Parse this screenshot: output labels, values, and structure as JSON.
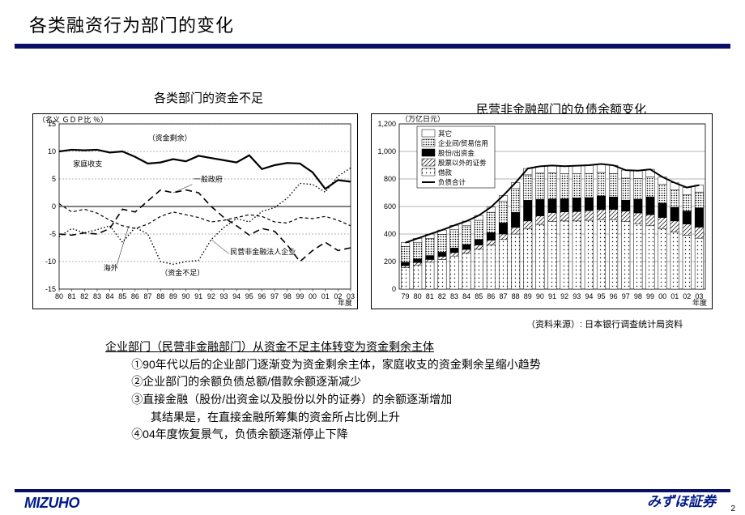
{
  "title": "各类融资行为部门的变化",
  "charts": {
    "left": {
      "title": "各类部门的资金不足",
      "type": "line",
      "y_unit": "（名义 ＧＤＰ比 ％）",
      "ylim": [
        -15,
        15
      ],
      "ytick_step": 5,
      "xlim": [
        80,
        103
      ],
      "x_labels": [
        "80",
        "81",
        "82",
        "83",
        "84",
        "85",
        "86",
        "87",
        "88",
        "89",
        "90",
        "91",
        "92",
        "93",
        "94",
        "95",
        "96",
        "97",
        "98",
        "99",
        "00",
        "01",
        "02",
        "03"
      ],
      "x_axis_label": "年度",
      "annotations": {
        "surplus": "（资金剩余）",
        "deficit": "（资金不足）",
        "household": "家庭收支",
        "government": "一般政府",
        "overseas": "海外",
        "private_nonfin": "民营非金融法人企业"
      },
      "line_color": "#000000",
      "series": {
        "household": {
          "style": "solid",
          "width": 2.2,
          "values": [
            10,
            10.3,
            10.2,
            10.3,
            9.8,
            10,
            9,
            7.8,
            8,
            8.6,
            8.2,
            9.2,
            8.8,
            8.4,
            8,
            9.3,
            6.8,
            7.5,
            7.9,
            7.8,
            6.2,
            3.2,
            4.8,
            4.5
          ]
        },
        "government": {
          "style": "long-dash",
          "width": 1.6,
          "values": [
            -5,
            -5.2,
            -4.8,
            -5,
            -4,
            -0.5,
            -1,
            1,
            3,
            2.5,
            3,
            2.5,
            0,
            -2,
            -3.5,
            -5.2,
            -4,
            -4.5,
            -7,
            -10,
            -8,
            -6.5,
            -8,
            -7.5
          ]
        },
        "overseas": {
          "style": "short-dash",
          "width": 1.2,
          "values": [
            0.5,
            -1,
            -0.5,
            -1.2,
            -2.5,
            -3.5,
            -4,
            -3.2,
            -1.8,
            -1,
            -1.5,
            -2,
            -2.8,
            -2.5,
            -2,
            -1.5,
            -1.8,
            -2.8,
            -3.0,
            -2.0,
            -2.2,
            -1.8,
            -2.5,
            -3.5
          ]
        },
        "corporate": {
          "style": "dotted",
          "width": 1.4,
          "values": [
            -5.5,
            -4,
            -4.8,
            -4.2,
            -3.5,
            -6.5,
            -3.8,
            -5,
            -10,
            -10.5,
            -10,
            -9.8,
            -6,
            -3.8,
            -2.2,
            -2.8,
            -0.9,
            -0.2,
            1.5,
            4.2,
            4,
            2.6,
            5.5,
            7
          ]
        }
      }
    },
    "right": {
      "title": "民营非金融部门的负债余额变化",
      "type": "stacked-bar+line",
      "y_unit": "（万亿日元）",
      "ylim": [
        0,
        1200
      ],
      "ytick_step": 200,
      "x_labels": [
        "79",
        "80",
        "81",
        "82",
        "83",
        "84",
        "85",
        "86",
        "87",
        "88",
        "89",
        "90",
        "91",
        "92",
        "93",
        "94",
        "95",
        "96",
        "97",
        "98",
        "99",
        "00",
        "01",
        "02",
        "03"
      ],
      "x_axis_label": "年度",
      "legend": {
        "other": "其它",
        "trade": "企业间/贸易信用",
        "equity": "股份/出资金",
        "nonshare": "股票以外的证劵",
        "loans": "借款",
        "total": "负债合计"
      },
      "colors": {
        "other": {
          "fill": "#ffffff",
          "hatch": ""
        },
        "trade": {
          "fill": "#ffffff",
          "hatch": "dots-dense"
        },
        "equity": {
          "fill": "#000000",
          "hatch": ""
        },
        "nonshare": {
          "fill": "#ffffff",
          "hatch": "diag"
        },
        "loans": {
          "fill": "#ffffff",
          "hatch": "dots-sparse"
        },
        "total_line": "#000000"
      },
      "stack_order": [
        "loans",
        "nonshare",
        "equity",
        "trade",
        "other"
      ],
      "bars": [
        {
          "loans": 155,
          "nonshare": 15,
          "equity": 25,
          "trade": 115,
          "other": 27
        },
        {
          "loans": 175,
          "nonshare": 18,
          "equity": 27,
          "trade": 120,
          "other": 28
        },
        {
          "loans": 195,
          "nonshare": 20,
          "equity": 29,
          "trade": 125,
          "other": 30
        },
        {
          "loans": 215,
          "nonshare": 22,
          "equity": 31,
          "trade": 130,
          "other": 31
        },
        {
          "loans": 240,
          "nonshare": 25,
          "equity": 33,
          "trade": 133,
          "other": 32
        },
        {
          "loans": 260,
          "nonshare": 28,
          "equity": 36,
          "trade": 136,
          "other": 34
        },
        {
          "loans": 290,
          "nonshare": 30,
          "equity": 40,
          "trade": 140,
          "other": 35
        },
        {
          "loans": 320,
          "nonshare": 35,
          "equity": 55,
          "trade": 148,
          "other": 38
        },
        {
          "loans": 360,
          "nonshare": 40,
          "equity": 80,
          "trade": 160,
          "other": 40
        },
        {
          "loans": 400,
          "nonshare": 48,
          "equity": 110,
          "trade": 172,
          "other": 43
        },
        {
          "loans": 440,
          "nonshare": 55,
          "equity": 150,
          "trade": 185,
          "other": 46
        },
        {
          "loans": 470,
          "nonshare": 62,
          "equity": 120,
          "trade": 190,
          "other": 50
        },
        {
          "loans": 490,
          "nonshare": 65,
          "equity": 100,
          "trade": 190,
          "other": 53
        },
        {
          "loans": 495,
          "nonshare": 66,
          "equity": 95,
          "trade": 182,
          "other": 55
        },
        {
          "loans": 495,
          "nonshare": 68,
          "equity": 100,
          "trade": 175,
          "other": 58
        },
        {
          "loans": 500,
          "nonshare": 70,
          "equity": 95,
          "trade": 175,
          "other": 60
        },
        {
          "loans": 505,
          "nonshare": 72,
          "equity": 100,
          "trade": 170,
          "other": 62
        },
        {
          "loans": 505,
          "nonshare": 74,
          "equity": 90,
          "trade": 170,
          "other": 60
        },
        {
          "loans": 490,
          "nonshare": 76,
          "equity": 80,
          "trade": 160,
          "other": 58
        },
        {
          "loans": 475,
          "nonshare": 78,
          "equity": 100,
          "trade": 150,
          "other": 57
        },
        {
          "loans": 460,
          "nonshare": 80,
          "equity": 130,
          "trade": 145,
          "other": 55
        },
        {
          "loans": 440,
          "nonshare": 80,
          "equity": 105,
          "trade": 135,
          "other": 54
        },
        {
          "loans": 415,
          "nonshare": 80,
          "equity": 100,
          "trade": 125,
          "other": 52
        },
        {
          "loans": 392,
          "nonshare": 80,
          "equity": 95,
          "trade": 120,
          "other": 51
        },
        {
          "loans": 370,
          "nonshare": 80,
          "equity": 140,
          "trade": 115,
          "other": 50
        }
      ]
    }
  },
  "source": "（资料来源）: 日本银行调查统计局资料",
  "body": {
    "head": "企业部门（民营非金融部门）从资金不足主体转变为资金剩余主体",
    "p1": "①90年代以后的企业部门逐渐变为资金剩余主体，家庭收支的资金剩余呈缩小趋势",
    "p2": "②企业部门的余额负债总额/借款余额逐渐减少",
    "p3": "③直接金融（股份/出资金以及股份以外的证券）的余额逐渐增加",
    "p3sub": "其结果是，在直接金融所筹集的资金所占比例上升",
    "p4": "④04年度恢复景气，负债余额逐渐停止下降"
  },
  "footer": {
    "logo_en": "MIZUHO",
    "logo_jp": "みずほ証券",
    "page": "2"
  }
}
